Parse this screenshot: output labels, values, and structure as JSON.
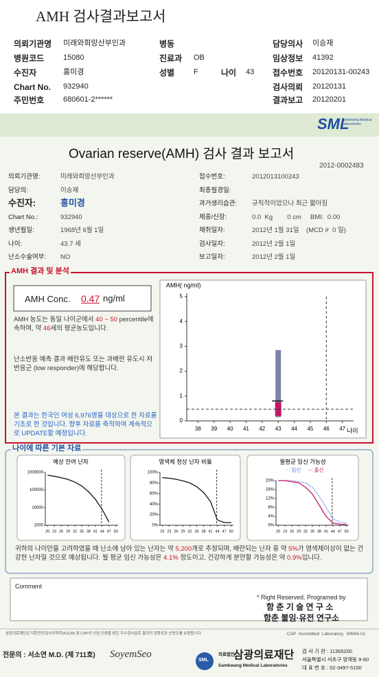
{
  "header": {
    "title": "AMH 검사결과보고서",
    "fields": [
      {
        "label": "의뢰기관명",
        "value": "미래와희망산부인과"
      },
      {
        "label": "병동"
      },
      {
        "label": "담당의사",
        "value": "이승재"
      },
      {
        "label": "병원코드",
        "value": "15080"
      },
      {
        "label": "진료과",
        "value": "OB"
      },
      {
        "label": "임상정보",
        "value": "41392"
      },
      {
        "label": "수진자",
        "value": "홍미경"
      },
      {
        "label": "성별",
        "value": "F"
      },
      {
        "label": "나이",
        "value": "43"
      },
      {
        "label": "접수번호",
        "value": "20120131-00243"
      },
      {
        "label": "Chart No.",
        "value": "932940"
      },
      {
        "label": "검사의뢰",
        "value": "20120131"
      },
      {
        "label": "주민번호",
        "value": "680601-2******"
      },
      {
        "label": "결과보고",
        "value": "20120201"
      }
    ]
  },
  "report": {
    "logo": "SML",
    "logo_sub": "Samkwang Medical Laboratories",
    "title": "Ovarian reserve(AMH) 검사 결과 보고서",
    "number": "2012-0002483",
    "info": [
      {
        "label": "의뢰기관명:",
        "value": "미래와희망산부인과"
      },
      {
        "label": "접수번호:",
        "value": "2012013100243"
      },
      {
        "label": "담당의:",
        "value": "이승재"
      },
      {
        "label": "최종월경일:"
      },
      {
        "label": "수진자:",
        "value": "홍미경"
      },
      {
        "label": "과거생리습관:",
        "value": "규칙적이었으나 최근 짧아짐"
      },
      {
        "label": "Chart No.:",
        "value": "932940"
      },
      {
        "label": "체중/신장:",
        "value": "0.0  Kg        0 cm     BMI:  0.00"
      },
      {
        "label": "생년월일:",
        "value": "1968년 6월 1일"
      },
      {
        "label": "채취일자:",
        "value": "2012년 1월 31일    (MCD #  0 일)"
      },
      {
        "label": "나이:",
        "value": "43.7 세"
      },
      {
        "label": "검사일자:",
        "value": "2012년 2월 1일"
      },
      {
        "label": "난소수술여부:",
        "value": "NO"
      },
      {
        "label": "보고일자:",
        "value": "2012년 2월 1일"
      }
    ],
    "analysis_title": "AMH 결과 및 분석",
    "amh_result": {
      "label": "AMH Conc.",
      "value": 0.47,
      "value_label": "0.47",
      "unit": "ng/ml"
    },
    "interpretation": [
      {
        "text": "AMH 농도는 동일 나이군에서 "
      },
      {
        "text": "40 ~ 50",
        "color": "#d0112b"
      },
      {
        "text": " percentile에 속하며, 약 "
      },
      {
        "text": "46",
        "color": "#d0112b"
      },
      {
        "text": "세의 평균농도입니다."
      }
    ],
    "response": "난소반응 예측 결과 배란유도 또는 과배란 유도시 저반응군 (low responder)에 해당합니다.",
    "note": "본 결과는 한국인 여성 6,976명을 대상으로 한 자료를 기초로 한 것입니다. 향후 자료를 축적하여 계속적으로 UPDATE할 예정입니다.",
    "amh_chart": {
      "type": "box",
      "y_label": "AMH( ng/ml)",
      "x_label": "나이",
      "xlim": [
        37.3,
        47.7
      ],
      "ylim": [
        0,
        5
      ],
      "xticks": [
        38,
        39,
        40,
        41,
        42,
        43,
        44,
        45,
        46,
        47
      ],
      "yticks": [
        0,
        1,
        2,
        3,
        4,
        5
      ],
      "range": {
        "x": 43,
        "low": 0.15,
        "high": 2.85,
        "color": "#7d83a8"
      },
      "box": {
        "x": 43,
        "low": 0.2,
        "high": 0.75,
        "color": "#c2186b"
      },
      "median": 0.8,
      "age_line": 46
    },
    "basic_title": "나이에 따른 기본 자료",
    "age_charts": [
      {
        "type": "line",
        "title": "예상 잔여 난자",
        "log_scale": true,
        "x": [
          20,
          23,
          26,
          29,
          32,
          35,
          38,
          41,
          44,
          47,
          50
        ],
        "xlim": [
          19,
          51
        ],
        "xticks": [
          20,
          23,
          26,
          29,
          32,
          35,
          38,
          41,
          44,
          47,
          50
        ],
        "ylim": [
          1000,
          1000000
        ],
        "yticks": [
          1000000,
          100000,
          10000,
          1000
        ],
        "age_line": 43.7,
        "series": [
          {
            "color": "#111111",
            "values": [
              700000,
              600000,
              500000,
              400000,
              280000,
              170000,
              80000,
              30000,
              8000,
              1500,
              null
            ]
          }
        ]
      },
      {
        "type": "line",
        "title": "염색체 정상 난자 비율",
        "x": [
          20,
          23,
          26,
          29,
          32,
          35,
          38,
          41,
          44,
          47,
          50
        ],
        "xlim": [
          19,
          51
        ],
        "xticks": [
          20,
          23,
          26,
          29,
          32,
          35,
          38,
          41,
          44,
          47,
          50
        ],
        "ylim": [
          0,
          100
        ],
        "yticks": [
          {
            "value": 100,
            "label": "100%"
          },
          {
            "value": 80,
            "label": "80%"
          },
          {
            "value": 60,
            "label": "60%"
          },
          {
            "value": 40,
            "label": "40%"
          },
          {
            "value": 20,
            "label": "20%"
          },
          {
            "value": 0,
            "label": "0%"
          }
        ],
        "age_line": 43.7,
        "series": [
          {
            "color": "#111111",
            "values": [
              90,
              89,
              87,
              84,
              80,
              73,
              62,
              45,
              10,
              5,
              5
            ]
          }
        ]
      },
      {
        "type": "line",
        "title": "월평균 임신 가능성",
        "x": [
          20,
          23,
          26,
          29,
          32,
          35,
          38,
          41,
          44,
          47,
          50
        ],
        "xlim": [
          19,
          51
        ],
        "xticks": [
          20,
          23,
          26,
          29,
          32,
          35,
          38,
          41,
          44,
          47,
          50
        ],
        "ylim": [
          0,
          20
        ],
        "yticks": [
          {
            "value": 20,
            "label": "20%"
          },
          {
            "value": 16,
            "label": "16%"
          },
          {
            "value": 12,
            "label": "12%"
          },
          {
            "value": 8,
            "label": "8%"
          },
          {
            "value": 4,
            "label": "4%"
          },
          {
            "value": 0,
            "label": "0%"
          }
        ],
        "age_line": 43.7,
        "series": [
          {
            "name": "-: 임신",
            "color": "#5a7be0",
            "style": "dotted",
            "values": [
              20,
              20,
              20,
              19.5,
              19,
              17,
              13,
              8,
              3,
              1.5,
              1
            ]
          },
          {
            "name": "--: 출산",
            "color": "#c2186b",
            "values": [
              20,
              20,
              19.5,
              19,
              17,
              14,
              9,
              4,
              1,
              0.5,
              0.3
            ]
          }
        ]
      }
    ],
    "summary": [
      {
        "text": "귀하의 나이만을 고려하였을 때 난소에 남아 있는 난자는 약 "
      },
      {
        "text": "5,200",
        "color": "#d0112b"
      },
      {
        "text": "개로 추정되며, 배란되는 난자 중 약 "
      },
      {
        "text": "5%",
        "color": "#d0112b"
      },
      {
        "text": "가 염색체이상이 없는 건강한 난자일 것으로 예상됩니다. 월 평균 임신 가능성은 "
      },
      {
        "text": "4.1%",
        "color": "#d0112b"
      },
      {
        "text": " 정도이고, 건강하게 분만할 가능성은 약 "
      },
      {
        "text": "0.9%",
        "color": "#d0112b"
      },
      {
        "text": "입니다."
      }
    ],
    "comment_label": "Comment",
    "rights": "* Right Reserved. Programed by",
    "lab1": "함 춘 기 술 연 구 소",
    "lab2": "함춘 불임·유전 연구소",
    "cert": "삼광의료재단은 대한진단검사의학회(KSLM) 및 CAP의 신임 인증을 받은 우수검사실로 결과의 정확성과 신빙도를 보증합니다.",
    "cap": "CAP  Accredited  Laboratory,  69944-01",
    "doctor": "전문의 : 서소연 M.D. (제 711호)",
    "signature": "SoyemSeo",
    "foundation_tag": "의료법인",
    "foundation": "삼광의료재단",
    "foundation_en": "Samkwang Medical Laboratories",
    "contact": [
      "검 사 기 관 : 11365200",
      "서울특별시 서초구 양재동 9-60",
      "대 표 번 호 : 02-3497-5100"
    ]
  }
}
